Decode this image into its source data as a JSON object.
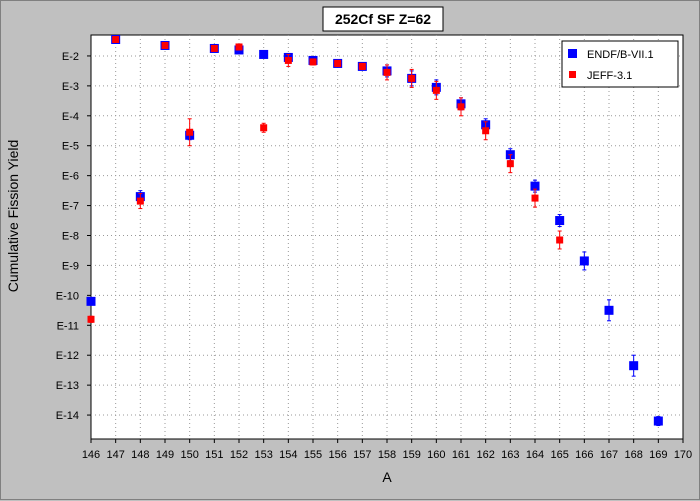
{
  "chart_data": {
    "type": "scatter",
    "title": "252Cf SF Z=62",
    "xlabel": "A",
    "ylabel": "Cumulative Fission Yield",
    "xlim": [
      146,
      170
    ],
    "xticks": [
      146,
      147,
      148,
      149,
      150,
      151,
      152,
      153,
      154,
      155,
      156,
      157,
      158,
      159,
      160,
      161,
      162,
      163,
      164,
      165,
      166,
      167,
      168,
      169,
      170
    ],
    "ylim_log": [
      -14.8,
      -1.3
    ],
    "yscale": "log",
    "yticks": [
      {
        "exp": -2,
        "label": "E-2"
      },
      {
        "exp": -3,
        "label": "E-3"
      },
      {
        "exp": -4,
        "label": "E-4"
      },
      {
        "exp": -5,
        "label": "E-5"
      },
      {
        "exp": -6,
        "label": "E-6"
      },
      {
        "exp": -7,
        "label": "E-7"
      },
      {
        "exp": -8,
        "label": "E-8"
      },
      {
        "exp": -9,
        "label": "E-9"
      },
      {
        "exp": -10,
        "label": "E-10"
      },
      {
        "exp": -11,
        "label": "E-11"
      },
      {
        "exp": -12,
        "label": "E-12"
      },
      {
        "exp": -13,
        "label": "E-13"
      },
      {
        "exp": -14,
        "label": "E-14"
      }
    ],
    "grid": true,
    "legend_position": "top-right",
    "series": [
      {
        "name": "ENDF/B-VII.1",
        "color": "#0000ff",
        "marker": "square-large",
        "points": [
          {
            "x": 146,
            "logy": -10.2,
            "err": 0.1
          },
          {
            "x": 147,
            "logy": -1.45,
            "err": 0.05
          },
          {
            "x": 148,
            "logy": -6.7,
            "err": 0.2
          },
          {
            "x": 149,
            "logy": -1.65,
            "err": 0.05
          },
          {
            "x": 150,
            "logy": -4.65,
            "err": 0.15
          },
          {
            "x": 151,
            "logy": -1.75,
            "err": 0.05
          },
          {
            "x": 152,
            "logy": -1.8,
            "err": 0.05
          },
          {
            "x": 153,
            "logy": -1.95,
            "err": 0.05
          },
          {
            "x": 154,
            "logy": -2.05,
            "err": 0.1
          },
          {
            "x": 155,
            "logy": -2.15,
            "err": 0.1
          },
          {
            "x": 156,
            "logy": -2.25,
            "err": 0.1
          },
          {
            "x": 157,
            "logy": -2.35,
            "err": 0.1
          },
          {
            "x": 158,
            "logy": -2.5,
            "err": 0.2
          },
          {
            "x": 159,
            "logy": -2.75,
            "err": 0.25
          },
          {
            "x": 160,
            "logy": -3.05,
            "err": 0.25
          },
          {
            "x": 161,
            "logy": -3.6,
            "err": 0.2
          },
          {
            "x": 162,
            "logy": -4.3,
            "err": 0.2
          },
          {
            "x": 163,
            "logy": -5.3,
            "err": 0.2
          },
          {
            "x": 164,
            "logy": -6.35,
            "err": 0.2
          },
          {
            "x": 165,
            "logy": -7.5,
            "err": 0.2
          },
          {
            "x": 166,
            "logy": -8.85,
            "err": 0.3
          },
          {
            "x": 167,
            "logy": -10.5,
            "err": 0.35
          },
          {
            "x": 168,
            "logy": -12.35,
            "err": 0.35
          },
          {
            "x": 169,
            "logy": -14.2,
            "err": 0.15
          }
        ]
      },
      {
        "name": "JEFF-3.1",
        "color": "#ff0000",
        "marker": "square-small",
        "points": [
          {
            "x": 146,
            "logy": -10.8,
            "err": 0.1
          },
          {
            "x": 147,
            "logy": -1.45,
            "err": 0.05
          },
          {
            "x": 148,
            "logy": -6.85,
            "err": 0.25
          },
          {
            "x": 149,
            "logy": -1.65,
            "err": 0.05
          },
          {
            "x": 150,
            "logy": -4.55,
            "err": 0.45
          },
          {
            "x": 151,
            "logy": -1.75,
            "err": 0.05
          },
          {
            "x": 152,
            "logy": -1.7,
            "err": 0.1
          },
          {
            "x": 153,
            "logy": -4.4,
            "err": 0.15
          },
          {
            "x": 154,
            "logy": -2.15,
            "err": 0.2
          },
          {
            "x": 155,
            "logy": -2.2,
            "err": 0.1
          },
          {
            "x": 156,
            "logy": -2.25,
            "err": 0.1
          },
          {
            "x": 157,
            "logy": -2.35,
            "err": 0.1
          },
          {
            "x": 158,
            "logy": -2.55,
            "err": 0.25
          },
          {
            "x": 159,
            "logy": -2.75,
            "err": 0.3
          },
          {
            "x": 160,
            "logy": -3.15,
            "err": 0.3
          },
          {
            "x": 161,
            "logy": -3.7,
            "err": 0.3
          },
          {
            "x": 162,
            "logy": -4.5,
            "err": 0.3
          },
          {
            "x": 163,
            "logy": -5.6,
            "err": 0.3
          },
          {
            "x": 164,
            "logy": -6.75,
            "err": 0.3
          },
          {
            "x": 165,
            "logy": -8.15,
            "err": 0.3
          }
        ]
      }
    ]
  }
}
